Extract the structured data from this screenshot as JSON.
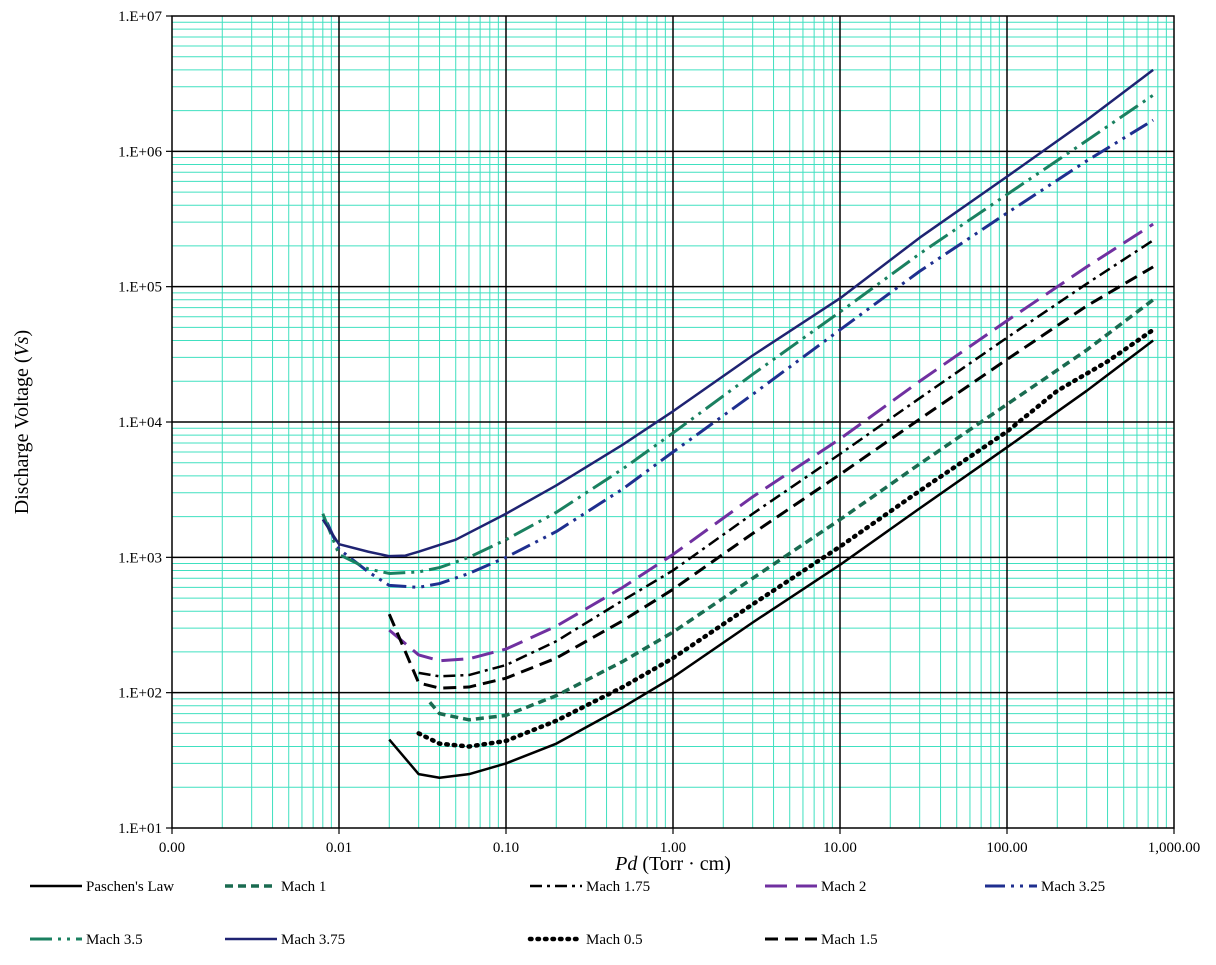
{
  "chart_data": {
    "type": "line",
    "x_scale": "log",
    "y_scale": "log",
    "xlim": [
      0.001,
      1000
    ],
    "ylim": [
      10,
      10000000
    ],
    "x_ticks": [
      "0.00",
      "0.01",
      "0.10",
      "1.00",
      "10.00",
      "100.00",
      "1,000.00"
    ],
    "y_ticks": [
      "1.E+01",
      "1.E+02",
      "1.E+03",
      "1.E+04",
      "1.E+05",
      "1.E+06",
      "1.E+07"
    ],
    "xlabel_italic": "Pd",
    "xlabel_rest": " (Torr · cm)",
    "ylabel_prefix": "Discharge Voltage (",
    "ylabel_italic": "Vs",
    "ylabel_suffix": ")",
    "grid": {
      "major": true,
      "minor": true,
      "major_color": "#000000",
      "minor_color": "#40e0c0"
    },
    "legend_position": "bottom",
    "series": [
      {
        "name": "Paschen's Law",
        "color": "#000000",
        "dash": "solid",
        "width": 2.5,
        "points": [
          [
            0.02,
            45
          ],
          [
            0.03,
            25
          ],
          [
            0.04,
            23.5
          ],
          [
            0.06,
            25
          ],
          [
            0.1,
            30
          ],
          [
            0.2,
            42
          ],
          [
            0.5,
            78
          ],
          [
            1,
            130
          ],
          [
            3,
            330
          ],
          [
            10,
            880
          ],
          [
            30,
            2300
          ],
          [
            100,
            6500
          ],
          [
            300,
            17000
          ],
          [
            750,
            40000
          ]
        ]
      },
      {
        "name": "Mach 1",
        "color": "#1a6b50",
        "dash": "8 5",
        "width": 3.5,
        "points": [
          [
            0.035,
            85
          ],
          [
            0.04,
            70
          ],
          [
            0.06,
            63
          ],
          [
            0.1,
            68
          ],
          [
            0.2,
            95
          ],
          [
            0.5,
            170
          ],
          [
            1,
            280
          ],
          [
            3,
            700
          ],
          [
            10,
            1900
          ],
          [
            30,
            4900
          ],
          [
            100,
            13500
          ],
          [
            300,
            34000
          ],
          [
            750,
            80000
          ]
        ]
      },
      {
        "name": "Mach 1.75",
        "color": "#000000",
        "dash": "12 5 3 5",
        "width": 2.5,
        "points": [
          [
            0.03,
            140
          ],
          [
            0.04,
            132
          ],
          [
            0.06,
            135
          ],
          [
            0.1,
            160
          ],
          [
            0.2,
            240
          ],
          [
            0.5,
            480
          ],
          [
            1,
            800
          ],
          [
            3,
            2100
          ],
          [
            10,
            5800
          ],
          [
            30,
            15000
          ],
          [
            100,
            42000
          ],
          [
            300,
            105000
          ],
          [
            750,
            220000
          ]
        ]
      },
      {
        "name": "Mach 2",
        "color": "#7030a0",
        "dash": "22 9",
        "width": 3,
        "points": [
          [
            0.02,
            290
          ],
          [
            0.03,
            190
          ],
          [
            0.04,
            172
          ],
          [
            0.06,
            178
          ],
          [
            0.1,
            210
          ],
          [
            0.2,
            310
          ],
          [
            0.5,
            600
          ],
          [
            1,
            1050
          ],
          [
            3,
            2800
          ],
          [
            10,
            7500
          ],
          [
            30,
            20000
          ],
          [
            100,
            56000
          ],
          [
            300,
            140000
          ],
          [
            750,
            290000
          ]
        ]
      },
      {
        "name": "Mach 3.25",
        "color": "#1f2f8f",
        "dash": "20 6 3 6 3 6",
        "width": 3,
        "points": [
          [
            0.0085,
            1800
          ],
          [
            0.01,
            1150
          ],
          [
            0.015,
            780
          ],
          [
            0.02,
            620
          ],
          [
            0.03,
            600
          ],
          [
            0.04,
            640
          ],
          [
            0.06,
            760
          ],
          [
            0.1,
            1000
          ],
          [
            0.2,
            1550
          ],
          [
            0.5,
            3200
          ],
          [
            1,
            6000
          ],
          [
            3,
            16000
          ],
          [
            10,
            48000
          ],
          [
            30,
            130000
          ],
          [
            100,
            350000
          ],
          [
            300,
            850000
          ],
          [
            750,
            1700000
          ]
        ]
      },
      {
        "name": "Mach 3.5",
        "color": "#1a8060",
        "dash": "22 6 3 6 3 6",
        "width": 3,
        "points": [
          [
            0.008,
            2100
          ],
          [
            0.01,
            1050
          ],
          [
            0.015,
            820
          ],
          [
            0.02,
            760
          ],
          [
            0.03,
            780
          ],
          [
            0.04,
            840
          ],
          [
            0.06,
            1000
          ],
          [
            0.1,
            1350
          ],
          [
            0.2,
            2150
          ],
          [
            0.5,
            4500
          ],
          [
            1,
            8300
          ],
          [
            3,
            22500
          ],
          [
            10,
            65000
          ],
          [
            30,
            175000
          ],
          [
            100,
            480000
          ],
          [
            300,
            1200000
          ],
          [
            750,
            2600000
          ]
        ]
      },
      {
        "name": "Mach 3.75",
        "color": "#1f2372",
        "dash": "solid",
        "width": 2.5,
        "points": [
          [
            0.008,
            1900
          ],
          [
            0.01,
            1250
          ],
          [
            0.015,
            1100
          ],
          [
            0.02,
            1020
          ],
          [
            0.025,
            1030
          ],
          [
            0.03,
            1100
          ],
          [
            0.05,
            1350
          ],
          [
            0.1,
            2100
          ],
          [
            0.2,
            3400
          ],
          [
            0.5,
            6800
          ],
          [
            1,
            12000
          ],
          [
            3,
            31000
          ],
          [
            10,
            82000
          ],
          [
            30,
            230000
          ],
          [
            100,
            650000
          ],
          [
            300,
            1700000
          ],
          [
            750,
            4000000
          ]
        ]
      },
      {
        "name": "Mach 0.5",
        "color": "#000000",
        "dash": "1.5 6",
        "width": 4.5,
        "points": [
          [
            0.03,
            50
          ],
          [
            0.04,
            42
          ],
          [
            0.06,
            40
          ],
          [
            0.1,
            44
          ],
          [
            0.2,
            62
          ],
          [
            0.5,
            110
          ],
          [
            1,
            180
          ],
          [
            3,
            450
          ],
          [
            10,
            1200
          ],
          [
            30,
            3100
          ],
          [
            100,
            8500
          ],
          [
            200,
            17000
          ],
          [
            400,
            28000
          ],
          [
            750,
            48000
          ]
        ]
      },
      {
        "name": "Mach 1.5",
        "color": "#000000",
        "dash": "13 7",
        "width": 3,
        "points": [
          [
            0.02,
            380
          ],
          [
            0.025,
            200
          ],
          [
            0.03,
            118
          ],
          [
            0.04,
            108
          ],
          [
            0.06,
            110
          ],
          [
            0.1,
            128
          ],
          [
            0.2,
            180
          ],
          [
            0.5,
            340
          ],
          [
            1,
            580
          ],
          [
            3,
            1500
          ],
          [
            10,
            4100
          ],
          [
            30,
            10500
          ],
          [
            100,
            29000
          ],
          [
            300,
            72000
          ],
          [
            750,
            140000
          ]
        ]
      }
    ]
  }
}
